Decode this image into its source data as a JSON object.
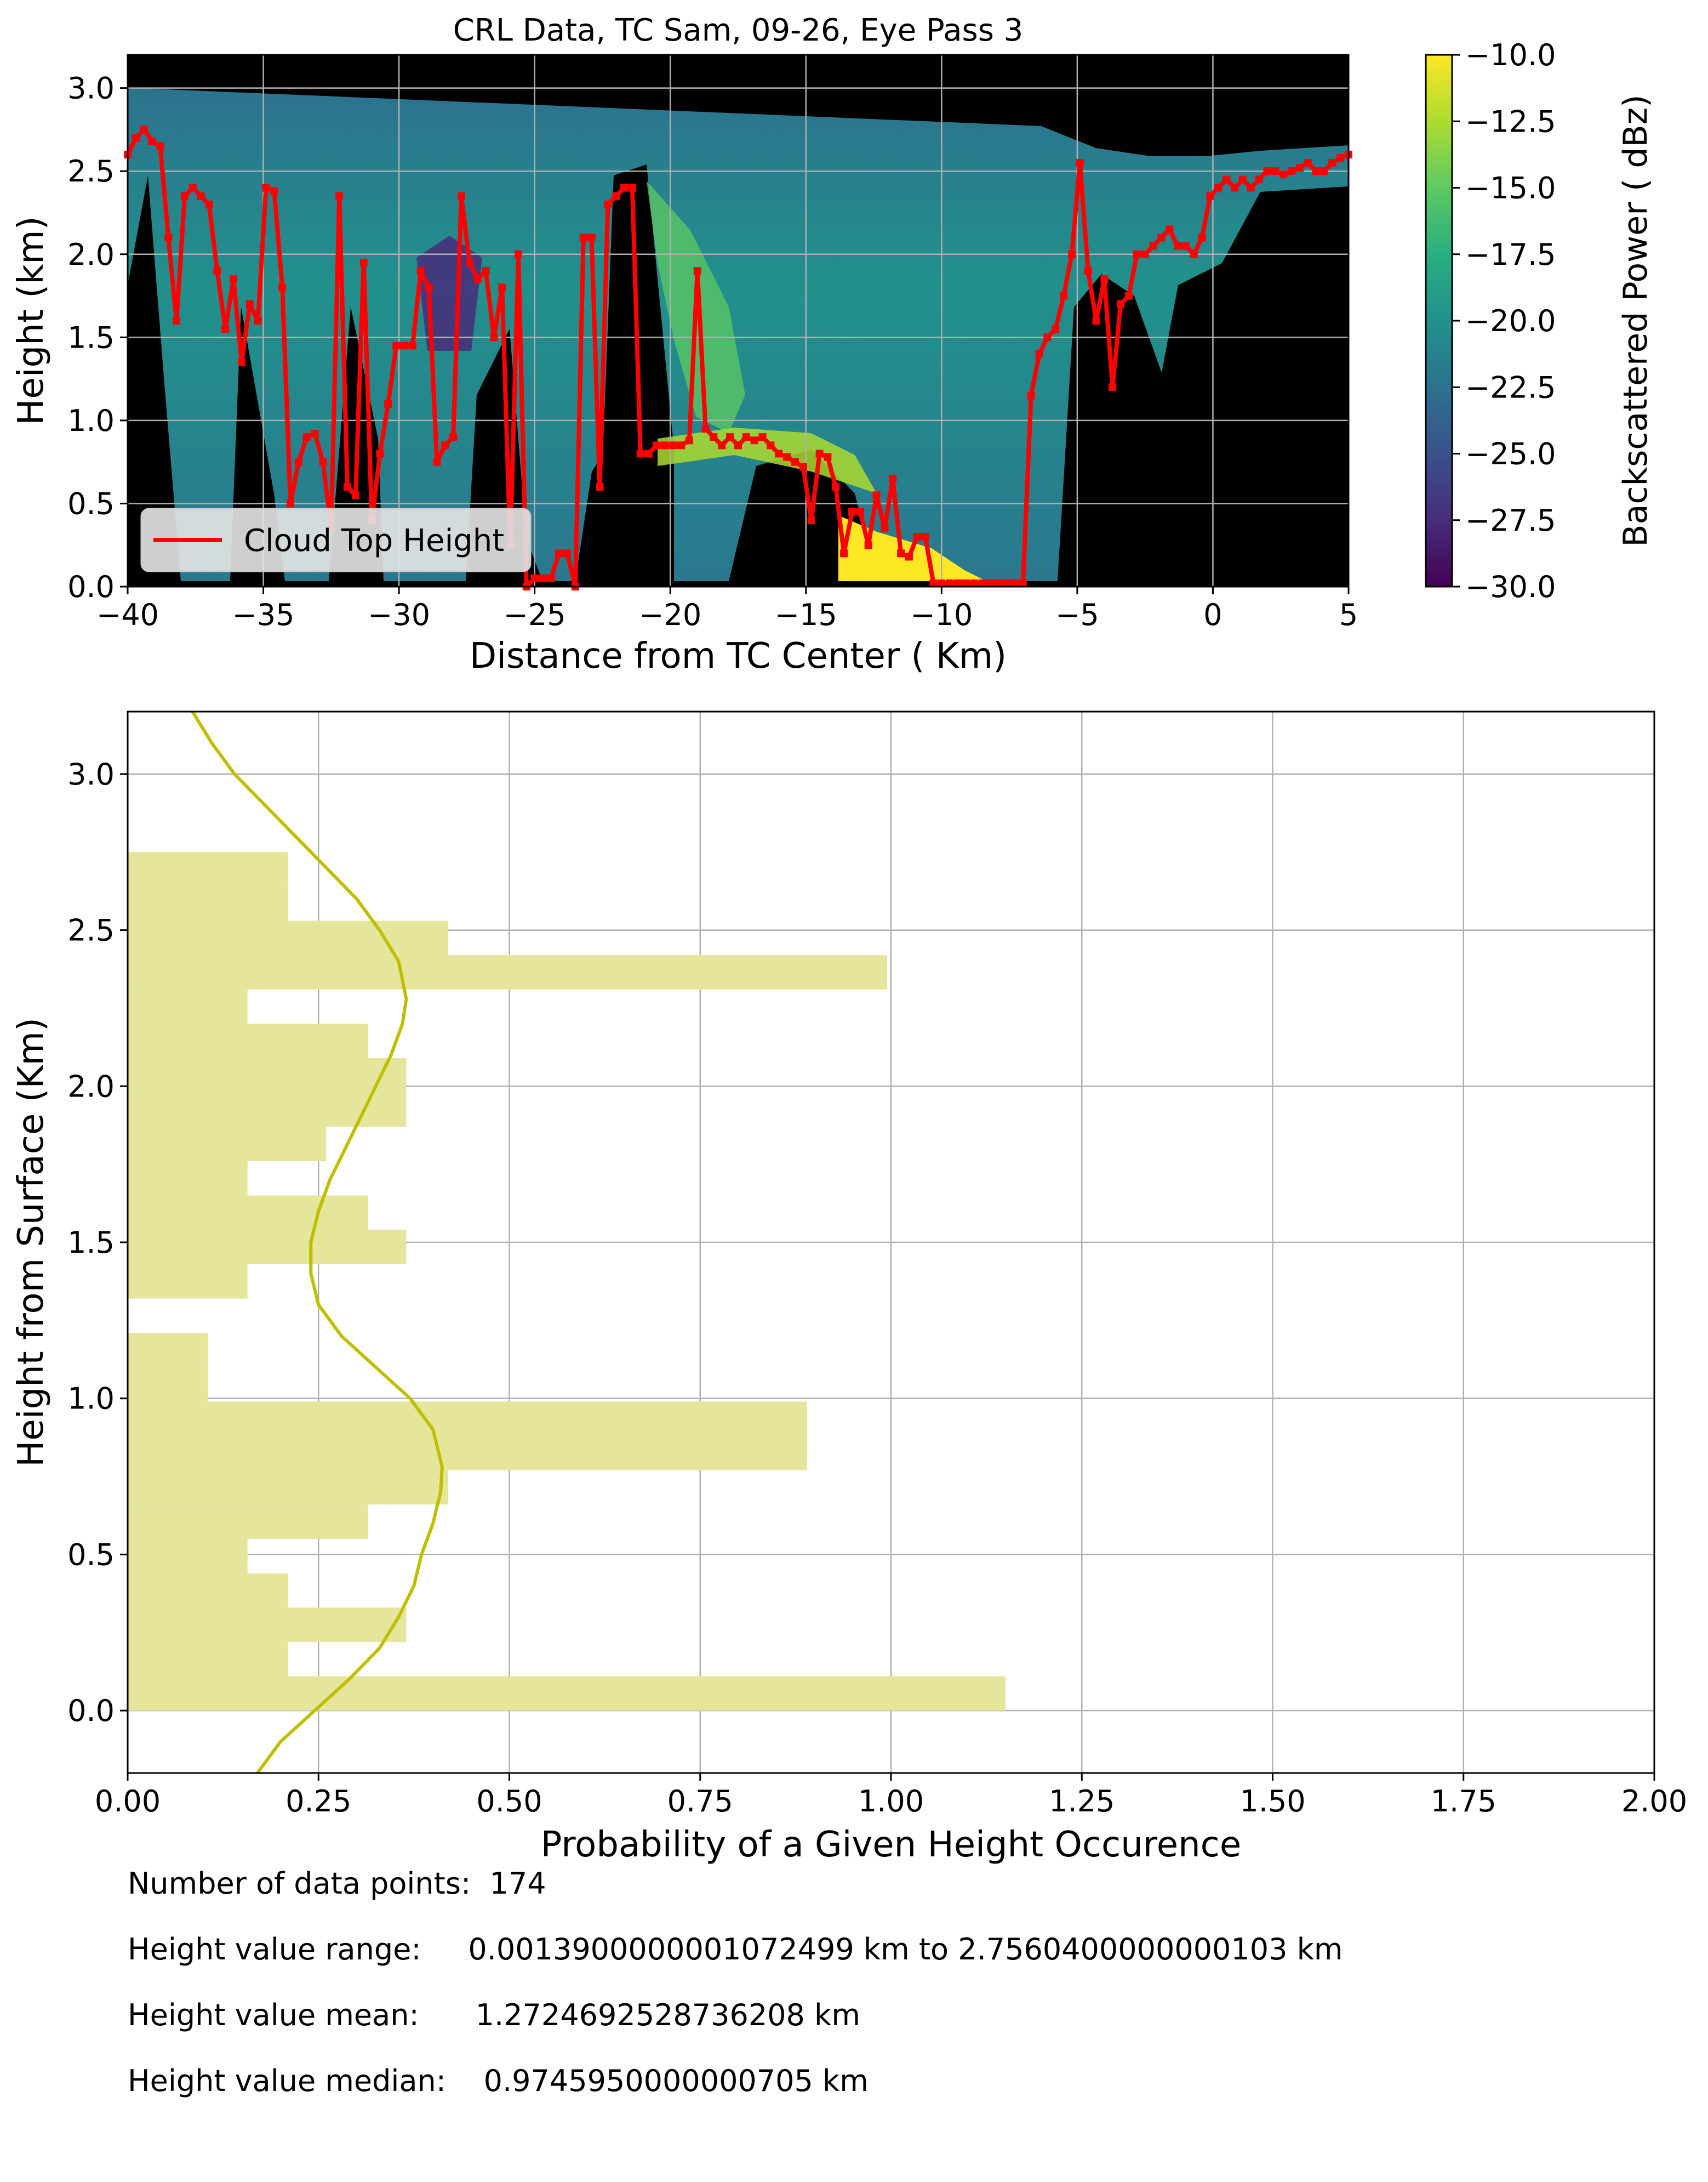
{
  "chart_data": [
    {
      "type": "heatmap",
      "title": "CRL Data, TC Sam, 09-26, Eye Pass 3",
      "xlabel": "Distance from TC Center ( Km)",
      "ylabel": "Height (km)",
      "xlim": [
        -40,
        5
      ],
      "ylim": [
        0,
        3.2
      ],
      "xticks": [
        "−40",
        "−35",
        "−30",
        "−25",
        "−20",
        "−15",
        "−10",
        "−5",
        "0",
        "5"
      ],
      "yticks": [
        "0.0",
        "0.5",
        "1.0",
        "1.5",
        "2.0",
        "2.5",
        "3.0"
      ],
      "grid": true,
      "colormap": "viridis",
      "colorbar": {
        "label": "Backscattered Power ( dBz)",
        "range": [
          -30,
          -10
        ],
        "ticks": [
          "−30.0",
          "−27.5",
          "−25.0",
          "−22.5",
          "−20.0",
          "−17.5",
          "−15.0",
          "−12.5",
          "−10.0"
        ]
      },
      "legend": {
        "placement": "lower-left",
        "entries": [
          "Cloud Top Height"
        ]
      },
      "series": [
        {
          "name": "Cloud Top Height",
          "color": "#ff0000",
          "x": [
            -40,
            -39.7,
            -39.4,
            -39.1,
            -38.8,
            -38.5,
            -38.2,
            -37.9,
            -37.6,
            -37.3,
            -37,
            -36.7,
            -36.4,
            -36.1,
            -35.8,
            -35.5,
            -35.2,
            -34.9,
            -34.6,
            -34.3,
            -34,
            -33.7,
            -33.4,
            -33.1,
            -32.8,
            -32.5,
            -32.2,
            -31.9,
            -31.6,
            -31.3,
            -31,
            -30.7,
            -30.4,
            -30.1,
            -29.8,
            -29.5,
            -29.2,
            -28.9,
            -28.6,
            -28.3,
            -28,
            -27.7,
            -27.4,
            -27.1,
            -26.8,
            -26.5,
            -26.2,
            -25.9,
            -25.6,
            -25.3,
            -25,
            -24.7,
            -24.4,
            -24.1,
            -23.8,
            -23.5,
            -23.2,
            -22.9,
            -22.6,
            -22.3,
            -22,
            -21.7,
            -21.4,
            -21.1,
            -20.8,
            -20.5,
            -20.2,
            -19.9,
            -19.6,
            -19.3,
            -19,
            -18.7,
            -18.4,
            -18.1,
            -17.8,
            -17.5,
            -17.2,
            -16.9,
            -16.6,
            -16.3,
            -16,
            -15.7,
            -15.4,
            -15.1,
            -14.8,
            -14.5,
            -14.2,
            -13.9,
            -13.6,
            -13.3,
            -13,
            -12.7,
            -12.4,
            -12.1,
            -11.8,
            -11.5,
            -11.2,
            -10.9,
            -10.6,
            -10.3,
            -10,
            -9.7,
            -9.4,
            -9.1,
            -8.8,
            -8.5,
            -8.2,
            -7.9,
            -7.6,
            -7.3,
            -7,
            -6.7,
            -6.4,
            -6.1,
            -5.8,
            -5.5,
            -5.2,
            -4.9,
            -4.6,
            -4.3,
            -4,
            -3.7,
            -3.4,
            -3.1,
            -2.8,
            -2.5,
            -2.2,
            -1.9,
            -1.6,
            -1.3,
            -1,
            -0.7,
            -0.4,
            -0.1,
            0.2,
            0.5,
            0.8,
            1.1,
            1.4,
            1.7,
            2,
            2.3,
            2.6,
            2.9,
            3.2,
            3.5,
            3.8,
            4.1,
            4.4,
            4.7,
            5
          ],
          "y": [
            2.6,
            2.7,
            2.75,
            2.68,
            2.65,
            2.1,
            1.6,
            2.35,
            2.4,
            2.35,
            2.3,
            1.9,
            1.55,
            1.85,
            1.35,
            1.7,
            1.6,
            2.4,
            2.38,
            1.8,
            0.5,
            0.75,
            0.9,
            0.92,
            0.75,
            0.35,
            2.35,
            0.6,
            0.55,
            1.95,
            0.4,
            0.8,
            1.1,
            1.45,
            1.45,
            1.45,
            1.9,
            1.8,
            0.75,
            0.85,
            0.9,
            2.35,
            1.95,
            1.85,
            1.9,
            1.5,
            1.8,
            0.25,
            2.0,
            0.0,
            0.05,
            0.05,
            0.05,
            0.2,
            0.2,
            0.0,
            2.1,
            2.1,
            0.6,
            2.3,
            2.35,
            2.4,
            2.4,
            0.8,
            0.8,
            0.85,
            0.85,
            0.85,
            0.85,
            0.88,
            1.9,
            0.95,
            0.9,
            0.85,
            0.9,
            0.85,
            0.9,
            0.88,
            0.9,
            0.85,
            0.8,
            0.78,
            0.75,
            0.72,
            0.4,
            0.8,
            0.78,
            0.6,
            0.2,
            0.45,
            0.45,
            0.25,
            0.55,
            0.35,
            0.65,
            0.2,
            0.18,
            0.3,
            0.3,
            0.02,
            0.02,
            0.02,
            0.02,
            0.02,
            0.02,
            0.02,
            0.02,
            0.02,
            0.02,
            0.02,
            0.02,
            1.15,
            1.4,
            1.5,
            1.55,
            1.75,
            2.0,
            2.55,
            1.9,
            1.6,
            1.85,
            1.2,
            1.7,
            1.75,
            2.0,
            2.0,
            2.05,
            2.1,
            2.15,
            2.05,
            2.05,
            2.0,
            2.1,
            2.35,
            2.4,
            2.45,
            2.4,
            2.45,
            2.4,
            2.45,
            2.5,
            2.5,
            2.48,
            2.5,
            2.52,
            2.55,
            2.5,
            2.5,
            2.55,
            2.58,
            2.6
          ]
        }
      ]
    },
    {
      "type": "bar",
      "orientation": "horizontal",
      "xlabel": "Probability of a Given Height Occurence",
      "ylabel": "Height from Surface (Km)",
      "xlim": [
        0,
        2
      ],
      "ylim": [
        -0.2,
        3.2
      ],
      "xticks": [
        "0.00",
        "0.25",
        "0.50",
        "0.75",
        "1.00",
        "1.25",
        "1.50",
        "1.75",
        "2.00"
      ],
      "yticks": [
        "0.0",
        "0.5",
        "1.0",
        "1.5",
        "2.0",
        "2.5",
        "3.0"
      ],
      "grid": true,
      "bin_color": "#e5e59c",
      "curve_color": "#bfbf00",
      "bins": [
        {
          "y0": 0.0,
          "y1": 0.11,
          "value": 1.15
        },
        {
          "y0": 0.11,
          "y1": 0.22,
          "value": 0.21
        },
        {
          "y0": 0.22,
          "y1": 0.33,
          "value": 0.365
        },
        {
          "y0": 0.33,
          "y1": 0.44,
          "value": 0.21
        },
        {
          "y0": 0.44,
          "y1": 0.55,
          "value": 0.157
        },
        {
          "y0": 0.55,
          "y1": 0.66,
          "value": 0.315
        },
        {
          "y0": 0.66,
          "y1": 0.77,
          "value": 0.42
        },
        {
          "y0": 0.77,
          "y1": 0.88,
          "value": 0.89
        },
        {
          "y0": 0.88,
          "y1": 0.99,
          "value": 0.89
        },
        {
          "y0": 0.99,
          "y1": 1.1,
          "value": 0.105
        },
        {
          "y0": 1.1,
          "y1": 1.21,
          "value": 0.105
        },
        {
          "y0": 1.21,
          "y1": 1.32,
          "value": 0.0
        },
        {
          "y0": 1.32,
          "y1": 1.43,
          "value": 0.157
        },
        {
          "y0": 1.43,
          "y1": 1.54,
          "value": 0.365
        },
        {
          "y0": 1.54,
          "y1": 1.65,
          "value": 0.315
        },
        {
          "y0": 1.65,
          "y1": 1.76,
          "value": 0.157
        },
        {
          "y0": 1.76,
          "y1": 1.87,
          "value": 0.26
        },
        {
          "y0": 1.87,
          "y1": 1.98,
          "value": 0.365
        },
        {
          "y0": 1.98,
          "y1": 2.09,
          "value": 0.365
        },
        {
          "y0": 2.09,
          "y1": 2.2,
          "value": 0.315
        },
        {
          "y0": 2.2,
          "y1": 2.31,
          "value": 0.157
        },
        {
          "y0": 2.31,
          "y1": 2.42,
          "value": 0.995
        },
        {
          "y0": 2.42,
          "y1": 2.53,
          "value": 0.42
        },
        {
          "y0": 2.53,
          "y1": 2.64,
          "value": 0.21
        },
        {
          "y0": 2.64,
          "y1": 2.75,
          "value": 0.21
        }
      ],
      "density_curve": [
        {
          "y": -0.2,
          "x": 0.17
        },
        {
          "y": -0.1,
          "x": 0.2
        },
        {
          "y": 0.0,
          "x": 0.245
        },
        {
          "y": 0.1,
          "x": 0.29
        },
        {
          "y": 0.2,
          "x": 0.33
        },
        {
          "y": 0.3,
          "x": 0.355
        },
        {
          "y": 0.4,
          "x": 0.375
        },
        {
          "y": 0.5,
          "x": 0.385
        },
        {
          "y": 0.6,
          "x": 0.4
        },
        {
          "y": 0.7,
          "x": 0.41
        },
        {
          "y": 0.78,
          "x": 0.412
        },
        {
          "y": 0.9,
          "x": 0.4
        },
        {
          "y": 1.0,
          "x": 0.37
        },
        {
          "y": 1.1,
          "x": 0.325
        },
        {
          "y": 1.2,
          "x": 0.28
        },
        {
          "y": 1.3,
          "x": 0.25
        },
        {
          "y": 1.4,
          "x": 0.24
        },
        {
          "y": 1.5,
          "x": 0.24
        },
        {
          "y": 1.6,
          "x": 0.25
        },
        {
          "y": 1.7,
          "x": 0.265
        },
        {
          "y": 1.8,
          "x": 0.285
        },
        {
          "y": 1.9,
          "x": 0.305
        },
        {
          "y": 2.0,
          "x": 0.325
        },
        {
          "y": 2.1,
          "x": 0.345
        },
        {
          "y": 2.2,
          "x": 0.36
        },
        {
          "y": 2.28,
          "x": 0.365
        },
        {
          "y": 2.4,
          "x": 0.355
        },
        {
          "y": 2.5,
          "x": 0.33
        },
        {
          "y": 2.6,
          "x": 0.3
        },
        {
          "y": 2.7,
          "x": 0.26
        },
        {
          "y": 2.8,
          "x": 0.22
        },
        {
          "y": 2.9,
          "x": 0.18
        },
        {
          "y": 3.0,
          "x": 0.14
        },
        {
          "y": 3.1,
          "x": 0.11
        },
        {
          "y": 3.2,
          "x": 0.085
        }
      ]
    }
  ],
  "stats": {
    "count_label": "Number of data points:",
    "count_value": "174",
    "range_label": "Height value range:",
    "range_value": "0.0013900000001072499 km to 2.7560400000000103 km",
    "mean_label": "Height value mean:",
    "mean_value": "1.2724692528736208 km",
    "median_label": "Height value median:",
    "median_value": "0.9745950000000705 km"
  }
}
